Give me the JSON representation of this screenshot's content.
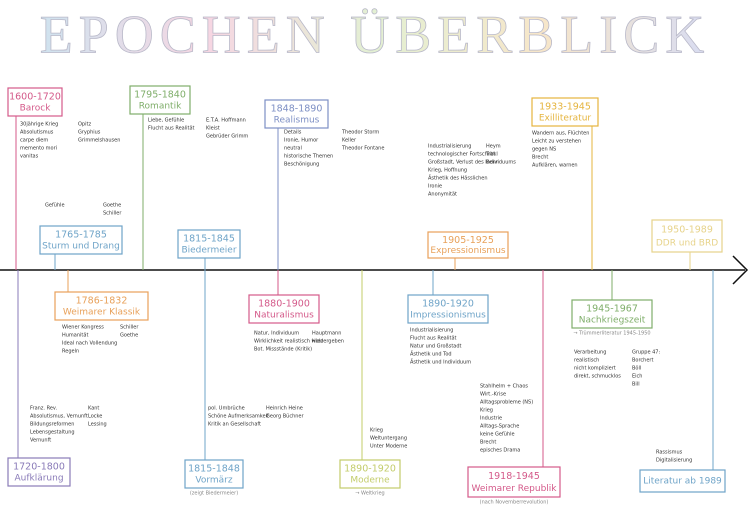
{
  "title": "EPOCHEN ÜBERBLICK",
  "epochs": [
    {
      "dates": "1600-1720",
      "name": "Barock",
      "notes": [
        "30jährige Krieg",
        "Absolutismus",
        "carpe diem",
        "memento mori",
        "vanitas",
        "Opitz",
        "Gryphius",
        "Grimmelshausen"
      ]
    },
    {
      "dates": "1765-1785",
      "name": "Sturm und Drang",
      "notes": [
        "Gefühle",
        "Goethe",
        "Schiller"
      ]
    },
    {
      "dates": "1795-1840",
      "name": "Romantik",
      "notes": [
        "Liebe, Gefühle",
        "Flucht aus Realität",
        "E.T.A. Hoffmann",
        "Kleist",
        "Gebrüder Grimm"
      ]
    },
    {
      "dates": "1815-1845",
      "name": "Biedermeier",
      "notes": []
    },
    {
      "dates": "1848-1890",
      "name": "Realismus",
      "notes": [
        "Details",
        "Ironie, Humor",
        "neutral",
        "historische Themen",
        "Beschönigung",
        "Theodor Storm",
        "Keller",
        "Theodor Fontane"
      ]
    },
    {
      "dates": "1905-1925",
      "name": "Expressionismus",
      "notes": [
        "Industrialisierung",
        "technologischer Fortschritt",
        "Großstadt, Verlust des Individuums",
        "Krieg, Hoffnung",
        "Ästhetik des Hässlichen",
        "Ironie",
        "Anonymität",
        "Heym",
        "Trakl",
        "Benn"
      ]
    },
    {
      "dates": "1933-1945",
      "name": "Exilliteratur",
      "notes": [
        "Wandern aus, Flüchten",
        "Leicht zu verstehen",
        "gegen NS",
        "Brecht",
        "Aufklären, warnen"
      ]
    },
    {
      "dates": "1950-1989",
      "name": "DDR und BRD",
      "notes": []
    },
    {
      "dates": "1786-1832",
      "name": "Weimarer Klassik",
      "notes": [
        "Wiener Kongress",
        "Humanität",
        "Ideal nach Vollendung",
        "Regeln",
        "Schiller",
        "Goethe"
      ]
    },
    {
      "dates": "1720-1800",
      "name": "Aufklärung",
      "notes": [
        "Franz. Rev.",
        "Absolutismus, Vernunft",
        "Bildungsreformen",
        "Lebensgestaltung",
        "Vernunft",
        "Kant",
        "Locke",
        "Lessing"
      ]
    },
    {
      "dates": "1815-1848",
      "name": "Vormärz",
      "sub": "(zeigt Biedermeier)",
      "notes": [
        "pol. Umbrüche",
        "Schöne Aufmerksamkeit",
        "Kritik an Gesellschaft",
        "Heinrich Heine",
        "Georg Büchner"
      ]
    },
    {
      "dates": "1880-1900",
      "name": "Naturalismus",
      "notes": [
        "Natur, Individuum",
        "Wirklichkeit realistisch wiedergeben",
        "Bot. Missstände (Kritik)",
        "Hauptmann",
        "Holz"
      ]
    },
    {
      "dates": "1890-1920",
      "name": "Moderne",
      "sub": "→ Weltkrieg",
      "notes": [
        "Krieg",
        "Weltuntergang",
        "Unter Moderne"
      ]
    },
    {
      "dates": "1890-1920",
      "name": "Impressionismus",
      "notes": [
        "Industrialisierung",
        "Flucht aus Realität",
        "Natur und Großstadt",
        "Ästhetik und Tod",
        "Ästhetik und Individuum"
      ]
    },
    {
      "dates": "1918-1945",
      "name": "Weimarer Republik",
      "sub": "(nach Novemberrevolution)",
      "notes": [
        "Stahlhelm + Chaos",
        "Wirt.-Krise",
        "Alltagsprobleme (NS)",
        "Krieg",
        "Industrie",
        "Alltags-Sprache",
        "keine Gefühle",
        "Brecht",
        "episches Drama"
      ]
    },
    {
      "dates": "1945-1967",
      "name": "Nachkriegszeit",
      "sub": "→ Trümmerliteratur 1945-1950",
      "notes": [
        "Verarbeitung",
        "realistisch",
        "nicht kompliziert",
        "direkt, schmucklos",
        "Gruppe 47:",
        "Borchert",
        "Böll",
        "Eich",
        "Bill"
      ]
    },
    {
      "name": "Literatur ab 1989",
      "notes": [
        "Rassismus",
        "Digitalisierung"
      ]
    }
  ]
}
